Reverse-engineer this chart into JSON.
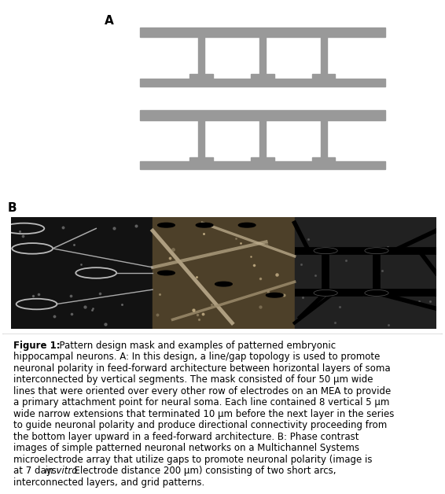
{
  "title_A": "A",
  "title_B": "B",
  "gray_color": "#999999",
  "bg_color": "#ffffff",
  "font_size_caption": 8.5,
  "font_size_label": 11,
  "caption_line1": "Figure 1:  Pattern design mask and examples of patterned embryonic",
  "caption_line2": "hippocampal neurons. A: In this design, a line/gap topology is used to promote",
  "caption_line3": "neuronal polarity in feed-forward architecture between horizontal layers of soma",
  "caption_line4": "interconnected by vertical segments. The mask consisted of four 50 μm wide",
  "caption_line5": "lines that were oriented over every other row of electrodes on an MEA to provide",
  "caption_line6": "a primary attachment point for neural soma. Each line contained 8 vertical 5 μm",
  "caption_line7": "wide narrow extensions that terminated 10 μm before the next layer in the series",
  "caption_line8": "to guide neuronal polarity and produce directional connectivity proceeding from",
  "caption_line9": "the bottom layer upward in a feed-forward architecture. B: Phase contrast",
  "caption_line10": "images of simple patterned neuronal networks on a Multichannel Systems",
  "caption_line11": "microelectrode array that utilize gaps to promote neuronal polarity (image is",
  "caption_line12": "at 7 days  in vitro . Electrode distance 200 μm) consisting of two short arcs,",
  "caption_line13": "interconnected layers, and grid patterns.",
  "italic_line": 12,
  "italic_start": "at 7 days ",
  "italic_word": "in vitro",
  "italic_after": ". Electrode distance 200 μm) consisting of two short arcs,"
}
